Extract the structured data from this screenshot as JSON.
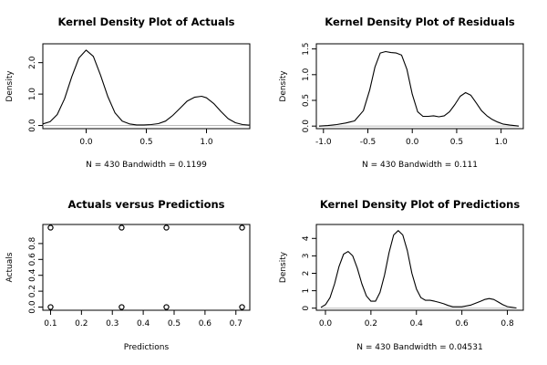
{
  "chart_data": [
    {
      "type": "line",
      "title": "Kernel Density Plot of Actuals",
      "xlabel": "N = 430   Bandwidth = 0.1199",
      "ylabel": "Density",
      "xlim": [
        -0.36,
        1.36
      ],
      "ylim": [
        -0.1,
        2.6
      ],
      "xticks": [
        0.0,
        0.5,
        1.0
      ],
      "xtick_labels": [
        "0.0",
        "0.5",
        "1.0"
      ],
      "yticks": [
        0.0,
        1.0,
        2.0
      ],
      "ytick_labels": [
        "0.0",
        "1.0",
        "2.0"
      ],
      "baseline": 0,
      "curve_color": "#000000",
      "baseline_color": "#bbbbbb",
      "series": [
        {
          "x": [
            -0.36,
            -0.3,
            -0.24,
            -0.18,
            -0.12,
            -0.06,
            0.0,
            0.06,
            0.12,
            0.18,
            0.24,
            0.3,
            0.36,
            0.42,
            0.48,
            0.54,
            0.6,
            0.66,
            0.72,
            0.78,
            0.84,
            0.9,
            0.96,
            1.0,
            1.06,
            1.12,
            1.18,
            1.24,
            1.3,
            1.36
          ],
          "y": [
            0.05,
            0.12,
            0.35,
            0.85,
            1.55,
            2.15,
            2.4,
            2.2,
            1.6,
            0.92,
            0.4,
            0.14,
            0.05,
            0.02,
            0.02,
            0.03,
            0.06,
            0.14,
            0.32,
            0.55,
            0.78,
            0.9,
            0.93,
            0.88,
            0.7,
            0.45,
            0.22,
            0.09,
            0.03,
            0.01
          ]
        }
      ]
    },
    {
      "type": "line",
      "title": "Kernel Density Plot of Residuals",
      "xlabel": "N = 430   Bandwidth = 0.111",
      "ylabel": "Density",
      "xlim": [
        -1.08,
        1.25
      ],
      "ylim": [
        -0.05,
        1.6
      ],
      "xticks": [
        -1.0,
        -0.5,
        0.0,
        0.5,
        1.0
      ],
      "xtick_labels": [
        "-1.0",
        "-0.5",
        "0.0",
        "0.5",
        "1.0"
      ],
      "yticks": [
        0.0,
        0.5,
        1.0,
        1.5
      ],
      "ytick_labels": [
        "0.0",
        "0.5",
        "1.0",
        "1.5"
      ],
      "baseline": 0,
      "curve_color": "#000000",
      "baseline_color": "#bbbbbb",
      "series": [
        {
          "x": [
            -1.05,
            -0.95,
            -0.85,
            -0.75,
            -0.65,
            -0.55,
            -0.48,
            -0.42,
            -0.36,
            -0.3,
            -0.24,
            -0.18,
            -0.12,
            -0.06,
            0.0,
            0.06,
            0.12,
            0.18,
            0.24,
            0.3,
            0.36,
            0.42,
            0.48,
            0.54,
            0.6,
            0.66,
            0.72,
            0.78,
            0.84,
            0.9,
            0.96,
            1.02,
            1.1,
            1.2
          ],
          "y": [
            0.0,
            0.01,
            0.03,
            0.06,
            0.1,
            0.3,
            0.7,
            1.15,
            1.42,
            1.45,
            1.43,
            1.42,
            1.38,
            1.1,
            0.62,
            0.28,
            0.19,
            0.19,
            0.2,
            0.18,
            0.2,
            0.28,
            0.42,
            0.58,
            0.65,
            0.6,
            0.45,
            0.3,
            0.2,
            0.13,
            0.08,
            0.04,
            0.02,
            0.0
          ]
        }
      ]
    },
    {
      "type": "scatter",
      "title": "Actuals versus Predictions",
      "xlabel": "Predictions",
      "ylabel": "Actuals",
      "xlim": [
        0.075,
        0.745
      ],
      "ylim": [
        -0.04,
        1.04
      ],
      "xticks": [
        0.1,
        0.2,
        0.3,
        0.4,
        0.5,
        0.6,
        0.7
      ],
      "xtick_labels": [
        "0.1",
        "0.2",
        "0.3",
        "0.4",
        "0.5",
        "0.6",
        "0.7"
      ],
      "yticks": [
        0.0,
        0.2,
        0.4,
        0.6,
        0.8
      ],
      "ytick_labels": [
        "0.0",
        "0.2",
        "0.4",
        "0.6",
        "0.8"
      ],
      "point_color": "#000000",
      "points": [
        {
          "x": 0.1,
          "y": 0
        },
        {
          "x": 0.1,
          "y": 1
        },
        {
          "x": 0.33,
          "y": 0
        },
        {
          "x": 0.33,
          "y": 1
        },
        {
          "x": 0.475,
          "y": 0
        },
        {
          "x": 0.475,
          "y": 1
        },
        {
          "x": 0.72,
          "y": 0
        },
        {
          "x": 0.72,
          "y": 1
        }
      ]
    },
    {
      "type": "line",
      "title": "Kernel Density Plot of Predictions",
      "xlabel": "N = 430   Bandwidth = 0.04531",
      "ylabel": "Density",
      "xlim": [
        -0.04,
        0.87
      ],
      "ylim": [
        -0.12,
        4.8
      ],
      "xticks": [
        0.0,
        0.2,
        0.4,
        0.6,
        0.8
      ],
      "xtick_labels": [
        "0.0",
        "0.2",
        "0.4",
        "0.6",
        "0.8"
      ],
      "yticks": [
        0,
        1,
        2,
        3,
        4
      ],
      "ytick_labels": [
        "0",
        "1",
        "2",
        "3",
        "4"
      ],
      "baseline": 0,
      "curve_color": "#000000",
      "baseline_color": "#bbbbbb",
      "series": [
        {
          "x": [
            -0.02,
            0.0,
            0.02,
            0.04,
            0.06,
            0.08,
            0.1,
            0.12,
            0.14,
            0.16,
            0.18,
            0.2,
            0.22,
            0.24,
            0.26,
            0.28,
            0.3,
            0.32,
            0.34,
            0.36,
            0.38,
            0.4,
            0.42,
            0.44,
            0.46,
            0.48,
            0.5,
            0.52,
            0.54,
            0.56,
            0.6,
            0.64,
            0.68,
            0.7,
            0.72,
            0.74,
            0.76,
            0.78,
            0.8,
            0.84
          ],
          "y": [
            0.05,
            0.2,
            0.6,
            1.4,
            2.4,
            3.1,
            3.25,
            3.0,
            2.3,
            1.4,
            0.7,
            0.4,
            0.4,
            0.9,
            1.9,
            3.2,
            4.2,
            4.45,
            4.2,
            3.3,
            2.0,
            1.1,
            0.6,
            0.45,
            0.45,
            0.4,
            0.33,
            0.25,
            0.15,
            0.08,
            0.08,
            0.18,
            0.38,
            0.5,
            0.55,
            0.5,
            0.35,
            0.2,
            0.09,
            0.01
          ]
        }
      ]
    }
  ]
}
